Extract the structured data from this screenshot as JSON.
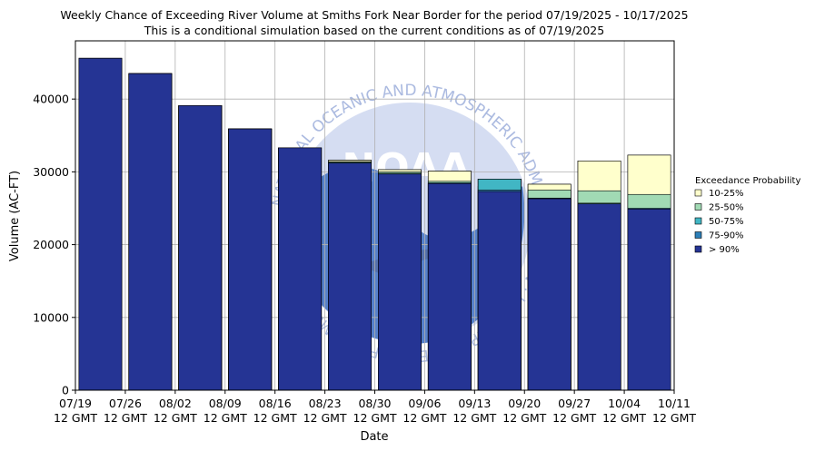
{
  "chart_data": {
    "type": "bar",
    "title": "Weekly Chance of Exceeding River Volume at Smiths Fork Near Border for the period 07/19/2025 - 10/17/2025",
    "subtitle": "This is a conditional simulation based on the current conditions as of 07/19/2025",
    "xlabel": "Date",
    "ylabel": "Volume (AC-FT)",
    "ylim": [
      0,
      48000
    ],
    "yticks": [
      0,
      10000,
      20000,
      30000,
      40000
    ],
    "ytick_labels": [
      "0",
      "10000",
      "20000",
      "30000",
      "40000"
    ],
    "xtick_labels": [
      [
        "07/19",
        "12 GMT"
      ],
      [
        "07/26",
        "12 GMT"
      ],
      [
        "08/02",
        "12 GMT"
      ],
      [
        "08/09",
        "12 GMT"
      ],
      [
        "08/16",
        "12 GMT"
      ],
      [
        "08/23",
        "12 GMT"
      ],
      [
        "08/30",
        "12 GMT"
      ],
      [
        "09/06",
        "12 GMT"
      ],
      [
        "09/13",
        "12 GMT"
      ],
      [
        "09/20",
        "12 GMT"
      ],
      [
        "09/27",
        "12 GMT"
      ],
      [
        "10/04",
        "12 GMT"
      ],
      [
        "10/11",
        "12 GMT"
      ]
    ],
    "categories": [
      "07/19",
      "07/26",
      "08/02",
      "08/09",
      "08/16",
      "08/23",
      "08/30",
      "09/06",
      "09/13",
      "09/20",
      "09/27",
      "10/04"
    ],
    "grid": true,
    "legend_position": "right",
    "legend_title": "Exceedance Probability",
    "series": [
      {
        "name": "10-25%",
        "color": "#ffffcc",
        "values": [
          45600,
          43500,
          39100,
          35900,
          33300,
          31600,
          30300,
          30100,
          29000,
          28300,
          31500,
          32300
        ]
      },
      {
        "name": "25-50%",
        "color": "#a1dab4",
        "values": [
          45600,
          43500,
          39100,
          35900,
          33300,
          31400,
          30000,
          28700,
          28000,
          27500,
          27400,
          26900
        ]
      },
      {
        "name": "50-75%",
        "color": "#41b6c4",
        "values": [
          45600,
          43500,
          39100,
          35900,
          33300,
          31300,
          29800,
          28500,
          29000,
          26400,
          25700,
          25000
        ]
      },
      {
        "name": "75-90%",
        "color": "#2c7fb8",
        "values": [
          45600,
          43500,
          39100,
          35900,
          33300,
          31200,
          29700,
          28400,
          27500,
          26300,
          25600,
          24900
        ]
      },
      {
        "name": "> 90%",
        "color": "#253494",
        "values": [
          45600,
          43500,
          39100,
          35900,
          33300,
          31200,
          29700,
          28400,
          27300,
          26300,
          25600,
          24900
        ]
      }
    ],
    "background_colors": {
      "behind_max": "#c8cdd0"
    },
    "watermark": {
      "logo_text": "NOAA",
      "ring_text": "NATIONAL OCEANIC AND ATMOSPHERIC ADMINISTRATION · U.S. DEPARTMENT OF COMMERCE"
    }
  }
}
